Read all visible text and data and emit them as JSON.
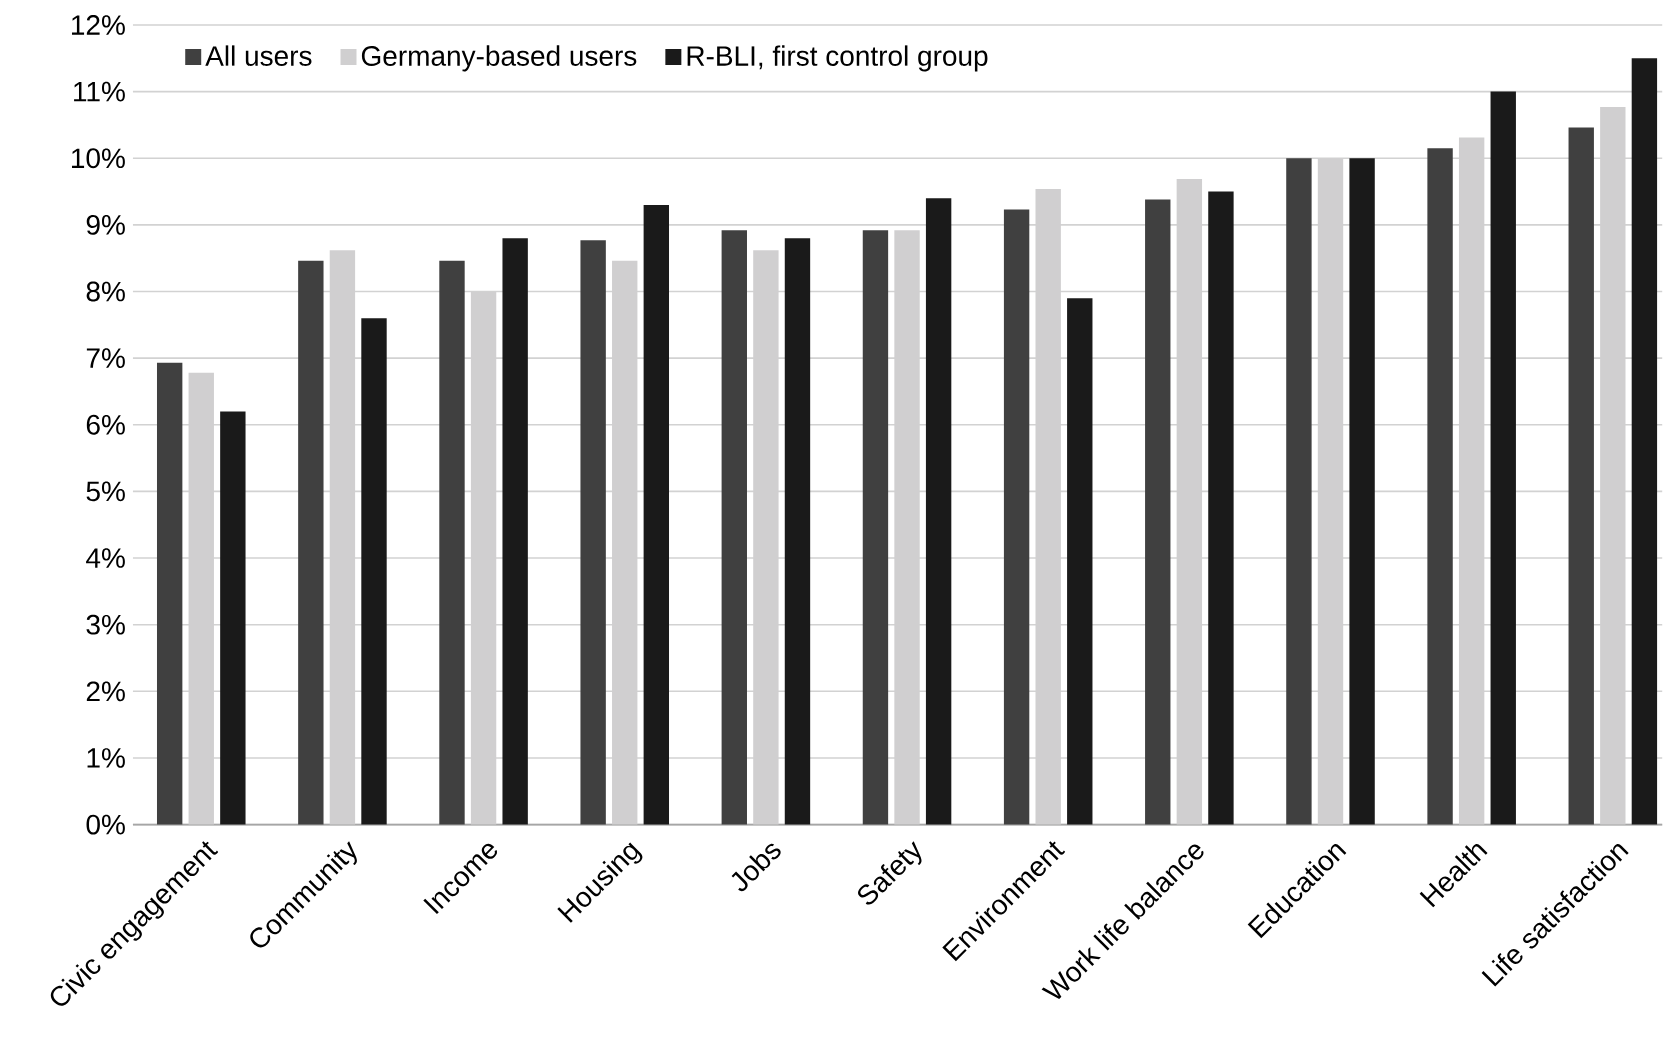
{
  "chart_data": {
    "type": "bar",
    "categories": [
      "Civic engagement",
      "Community",
      "Income",
      "Housing",
      "Jobs",
      "Safety",
      "Environment",
      "Work life balance",
      "Education",
      "Health",
      "Life satisfaction"
    ],
    "series": [
      {
        "name": "All users",
        "color": "#404040",
        "values": [
          6.93,
          8.46,
          8.46,
          8.77,
          8.92,
          8.92,
          9.23,
          9.38,
          10.0,
          10.15,
          10.46
        ]
      },
      {
        "name": "Germany-based users",
        "color": "#d0cfd0",
        "values": [
          6.78,
          8.62,
          8.0,
          8.46,
          8.62,
          8.92,
          9.54,
          9.69,
          10.0,
          10.31,
          10.77
        ]
      },
      {
        "name": "R-BLI, first control group",
        "color": "#1a1a1a",
        "values": [
          6.2,
          7.6,
          8.8,
          9.3,
          8.8,
          9.4,
          7.9,
          9.5,
          10.0,
          11.0,
          11.5
        ]
      }
    ],
    "ylim": [
      0,
      12
    ],
    "yticks": [
      {
        "value": 0,
        "label": "0%"
      },
      {
        "value": 1,
        "label": "1%"
      },
      {
        "value": 2,
        "label": "2%"
      },
      {
        "value": 3,
        "label": "3%"
      },
      {
        "value": 4,
        "label": "4%"
      },
      {
        "value": 5,
        "label": "5%"
      },
      {
        "value": 6,
        "label": "6%"
      },
      {
        "value": 7,
        "label": "7%"
      },
      {
        "value": 8,
        "label": "8%"
      },
      {
        "value": 9,
        "label": "9%"
      },
      {
        "value": 10,
        "label": "10%"
      },
      {
        "value": 11,
        "label": "11%"
      },
      {
        "value": 12,
        "label": "12%"
      }
    ],
    "grid": "y",
    "legend": "top left"
  }
}
